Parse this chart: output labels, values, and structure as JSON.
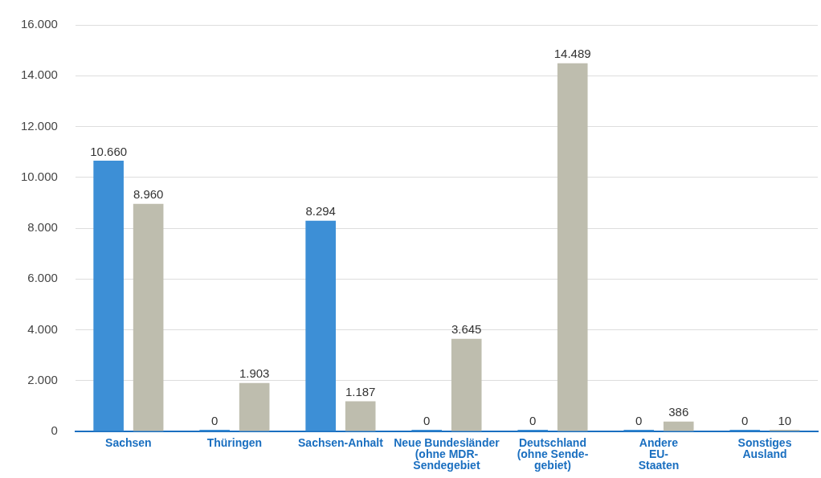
{
  "chart_data": {
    "type": "bar",
    "categories": [
      "Sachsen",
      "Thüringen",
      "Sachsen-Anhalt",
      "Neue Bundesländer\n(ohne MDR-\nSendegebiet",
      "Deutschland\n(ohne Sende-\ngebiet)",
      "Andere\nEU-\nStaaten",
      "Sonstiges\nAusland"
    ],
    "series": [
      {
        "color": "#3d8fd6",
        "values": [
          10660,
          0,
          8294,
          0,
          0,
          0,
          0
        ],
        "value_labels": [
          "10.660",
          "0",
          "8.294",
          "0",
          "0",
          "0",
          "0"
        ]
      },
      {
        "color": "#bebdae",
        "values": [
          8960,
          1903,
          1187,
          3645,
          14489,
          386,
          10
        ],
        "value_labels": [
          "8.960",
          "1.903",
          "1.187",
          "3.645",
          "14.489",
          "386",
          "10"
        ]
      }
    ],
    "ylim": [
      0,
      16000
    ],
    "yticks": [
      {
        "value": 0,
        "label": "0"
      },
      {
        "value": 2000,
        "label": "2.000"
      },
      {
        "value": 4000,
        "label": "4.000"
      },
      {
        "value": 6000,
        "label": "6.000"
      },
      {
        "value": 8000,
        "label": "8.000"
      },
      {
        "value": 10000,
        "label": "10.000"
      },
      {
        "value": 12000,
        "label": "12.000"
      },
      {
        "value": 14000,
        "label": "14.000"
      },
      {
        "value": 16000,
        "label": "16.000"
      }
    ],
    "grid": "y",
    "legend": false
  }
}
